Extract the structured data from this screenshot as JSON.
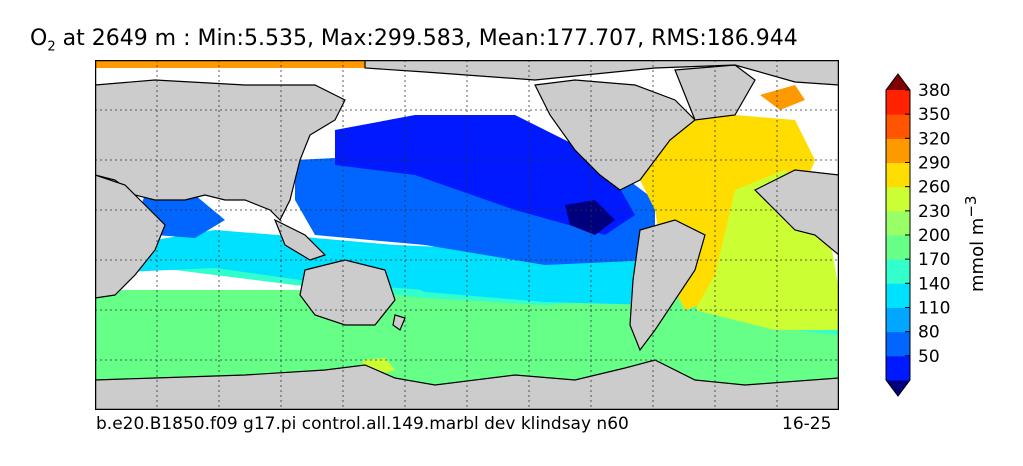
{
  "title": {
    "var_main": "O",
    "var_sub": "2",
    "rest": " at 2649 m : Min:5.535, Max:299.583, Mean:177.707, RMS:186.944"
  },
  "footer": {
    "case": "b.e20.B1850.f09 g17.pi control.all.149.marbl dev klindsay n60",
    "years": "16-25"
  },
  "colorbar": {
    "units_main": "mmol m",
    "units_sup": "−3",
    "ticks": [
      "50",
      "80",
      "110",
      "140",
      "170",
      "200",
      "230",
      "260",
      "290",
      "320",
      "350",
      "380"
    ],
    "colors": [
      "#00007f",
      "#0019ff",
      "#0066ff",
      "#00a6ff",
      "#00e0ff",
      "#33ffcc",
      "#66ff88",
      "#99ff66",
      "#ccff33",
      "#ffdd00",
      "#ff9900",
      "#ff5500",
      "#ff2200",
      "#7f0000"
    ]
  },
  "map_colors": {
    "land": "#cccccc",
    "missing": "#ffffff",
    "grid": "#333333"
  }
}
